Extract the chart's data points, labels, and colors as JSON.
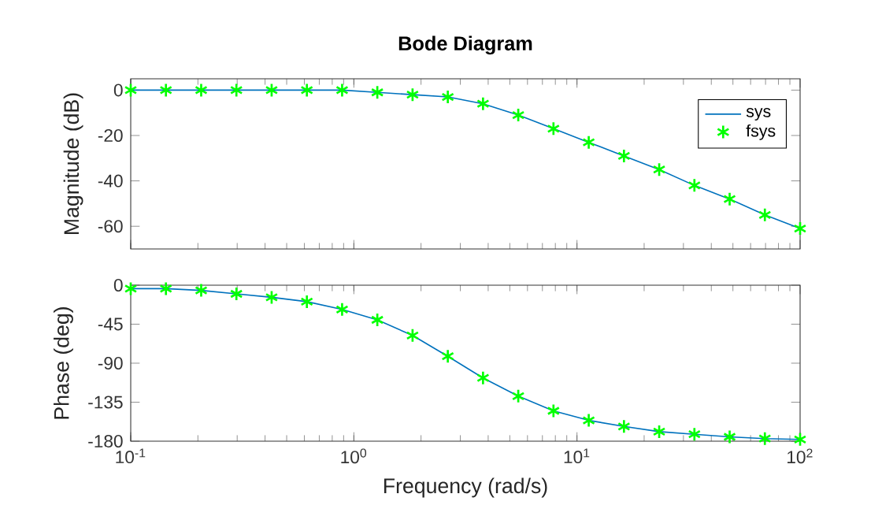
{
  "chart_data": [
    {
      "type": "line",
      "title": "Bode Diagram",
      "ylabel": "Magnitude (dB)",
      "log": "x",
      "legend": "top right",
      "tick_labels": "y",
      "xlim": [
        0.1,
        100
      ],
      "xticks": [
        {
          "value": 0.1,
          "label": null
        },
        {
          "value": 1,
          "label": null
        },
        {
          "value": 10,
          "label": null
        },
        {
          "value": 100,
          "label": null
        }
      ],
      "ylim": [
        -70,
        5
      ],
      "yticks": [
        -60,
        -40,
        -20,
        0
      ],
      "x": [
        0.1,
        0.1438,
        0.2069,
        0.2976,
        0.4281,
        0.6158,
        0.8859,
        1.274,
        1.833,
        2.637,
        3.793,
        5.456,
        7.848,
        11.29,
        16.24,
        23.36,
        33.6,
        48.33,
        69.52,
        100
      ],
      "series": [
        {
          "name": "sys",
          "color": "#0072bd",
          "marker": "none",
          "values": [
            0,
            0,
            0,
            0,
            0,
            0,
            0,
            -1,
            -2,
            -3,
            -6,
            -11,
            -17,
            -23,
            -29,
            -35,
            -42,
            -48,
            -55,
            -61
          ]
        },
        {
          "name": "fsys",
          "type": "scatter",
          "color": "#00ff00",
          "marker": "cross",
          "values": [
            0,
            0,
            0,
            0,
            0,
            0,
            0,
            -1,
            -2,
            -3,
            -6,
            -11,
            -17,
            -23,
            -29,
            -35,
            -42,
            -48,
            -55,
            -61
          ]
        }
      ]
    },
    {
      "type": "line",
      "xlabel": "Frequency (rad/s)",
      "ylabel": "Phase (deg)",
      "log": "x",
      "xlim": [
        0.1,
        100
      ],
      "xticks": [
        {
          "value": 0.1,
          "label": "10$^{-1}$"
        },
        {
          "value": 1,
          "label": "10$^{0}$"
        },
        {
          "value": 10,
          "label": "10$^{1}$"
        },
        {
          "value": 100,
          "label": "10$^{2}$"
        }
      ],
      "ylim": [
        -180,
        0
      ],
      "yticks": [
        -180,
        -135,
        -90,
        -45,
        0
      ],
      "x": [
        0.1,
        0.1438,
        0.2069,
        0.2976,
        0.4281,
        0.6158,
        0.8859,
        1.274,
        1.833,
        2.637,
        3.793,
        5.456,
        7.848,
        11.29,
        16.24,
        23.36,
        33.6,
        48.33,
        69.52,
        100
      ],
      "series": [
        {
          "color": "#0072bd",
          "marker": "none",
          "values": [
            -4,
            -4,
            -6,
            -10,
            -14,
            -19,
            -28,
            -40,
            -58,
            -82,
            -107,
            -128,
            -145,
            -156,
            -163,
            -169,
            -172,
            -175,
            -177,
            -178
          ]
        },
        {
          "type": "scatter",
          "color": "#00ff00",
          "marker": "cross",
          "values": [
            -4,
            -4,
            -6,
            -10,
            -14,
            -19,
            -28,
            -40,
            -58,
            -82,
            -107,
            -128,
            -145,
            -156,
            -163,
            -169,
            -172,
            -175,
            -177,
            -178
          ]
        }
      ]
    }
  ]
}
